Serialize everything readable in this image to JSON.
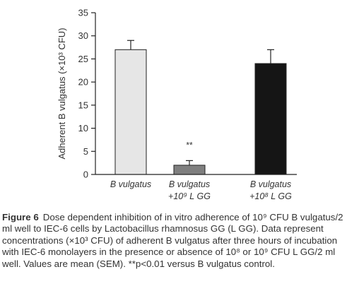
{
  "chart_data": {
    "type": "bar",
    "categories": [
      {
        "lines": [
          "B vulgatus"
        ]
      },
      {
        "lines": [
          "B vulgatus",
          "+10⁹ L GG"
        ]
      },
      {
        "lines": [
          "B vulgatus",
          "+10⁸ L GG"
        ]
      }
    ],
    "values": [
      27,
      2,
      24
    ],
    "errors": [
      2,
      1,
      3
    ],
    "bar_colors": [
      "#e6e6e6",
      "#7f7f7f",
      "#151515"
    ],
    "annotations": [
      "",
      "**",
      ""
    ],
    "ylabel": "Adherent B vulgatus (×10³ CFU)",
    "ylim": [
      0,
      35
    ],
    "yticks": [
      "0",
      "5",
      "10",
      "15",
      "20",
      "25",
      "30",
      "35"
    ],
    "grid": false
  },
  "caption": {
    "label": "Figure 6",
    "text": "Dose dependent inhibition of in vitro adherence of 10⁹ CFU B vulgatus/2 ml well to IEC-6 cells by Lactobacillus rhamnosus GG (L GG). Data represent concentrations (×10³ CFU) of adherent B vulgatus after three hours of incubation with IEC-6 monolayers in the presence or absence of 10⁸ or 10⁹ CFU L GG/2 ml well. Values are mean (SEM). **p<0.01 versus B vulgatus control."
  }
}
